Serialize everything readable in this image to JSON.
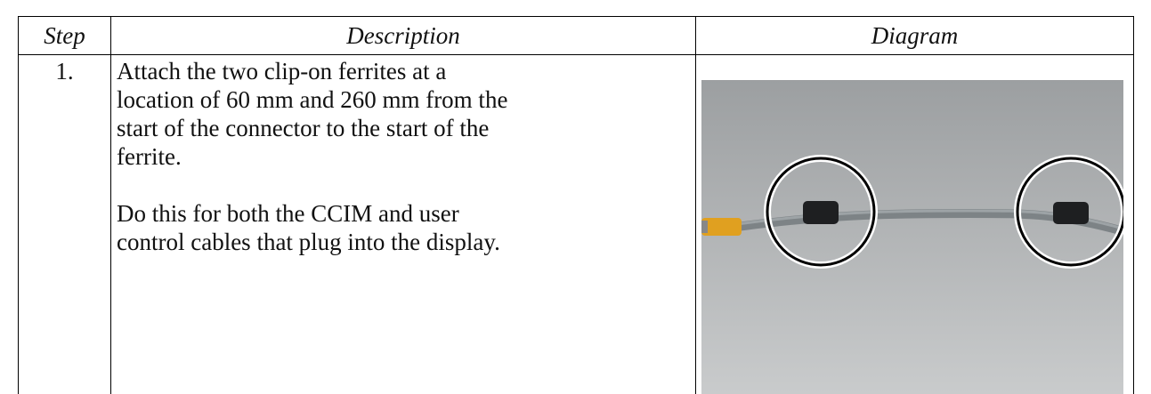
{
  "table": {
    "headers": [
      "Step",
      "Description",
      "Diagram"
    ],
    "rows": [
      {
        "step": "1.",
        "description": [
          [
            "Attach the two clip-on ferrites at a",
            "location of 60 mm and 260 mm from the",
            "start of the connector to the start of the",
            "ferrite."
          ],
          [
            "Do this for both the CCIM and user",
            "control cables that plug into the display."
          ]
        ]
      }
    ]
  }
}
